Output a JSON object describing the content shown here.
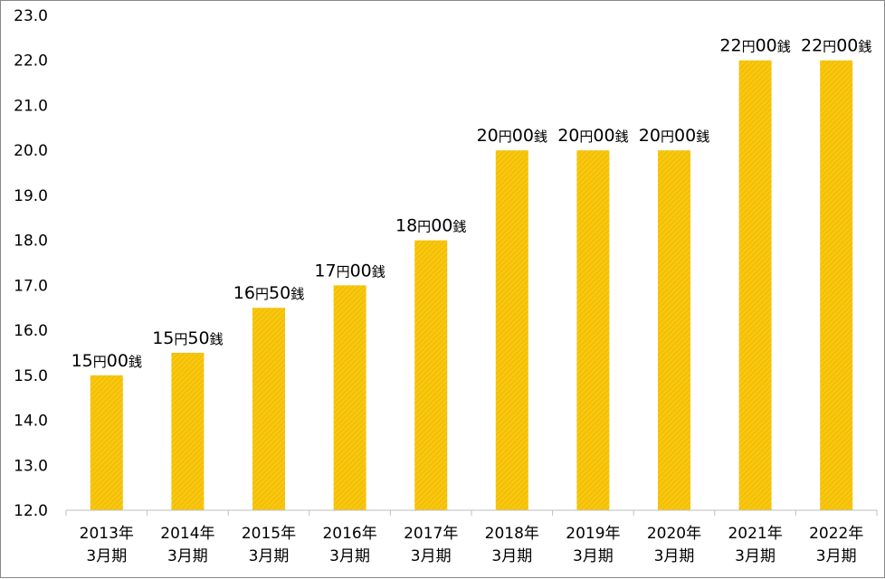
{
  "chart_data": {
    "type": "bar",
    "categories": [
      [
        "2013年",
        "3月期"
      ],
      [
        "2014年",
        "3月期"
      ],
      [
        "2015年",
        "3月期"
      ],
      [
        "2016年",
        "3月期"
      ],
      [
        "2017年",
        "3月期"
      ],
      [
        "2018年",
        "3月期"
      ],
      [
        "2019年",
        "3月期"
      ],
      [
        "2020年",
        "3月期"
      ],
      [
        "2021年",
        "3月期"
      ],
      [
        "2022年",
        "3月期"
      ]
    ],
    "values": [
      15.0,
      15.5,
      16.5,
      17.0,
      18.0,
      20.0,
      20.0,
      20.0,
      22.0,
      22.0
    ],
    "data_labels": [
      [
        "15",
        "円",
        "00",
        "銭"
      ],
      [
        "15",
        "円",
        "50",
        "銭"
      ],
      [
        "16",
        "円",
        "50",
        "銭"
      ],
      [
        "17",
        "円",
        "00",
        "銭"
      ],
      [
        "18",
        "円",
        "00",
        "銭"
      ],
      [
        "20",
        "円",
        "00",
        "銭"
      ],
      [
        "20",
        "円",
        "00",
        "銭"
      ],
      [
        "20",
        "円",
        "00",
        "銭"
      ],
      [
        "22",
        "円",
        "00",
        "銭"
      ],
      [
        "22",
        "円",
        "00",
        "銭"
      ]
    ],
    "ylim": [
      12.0,
      23.0
    ],
    "yticks": [
      "12.0",
      "13.0",
      "14.0",
      "15.0",
      "16.0",
      "17.0",
      "18.0",
      "19.0",
      "20.0",
      "21.0",
      "22.0",
      "23.0"
    ],
    "grid": false,
    "legend": "none",
    "bar_color": "#F5C000",
    "axis_color": "#BFBFBF"
  }
}
